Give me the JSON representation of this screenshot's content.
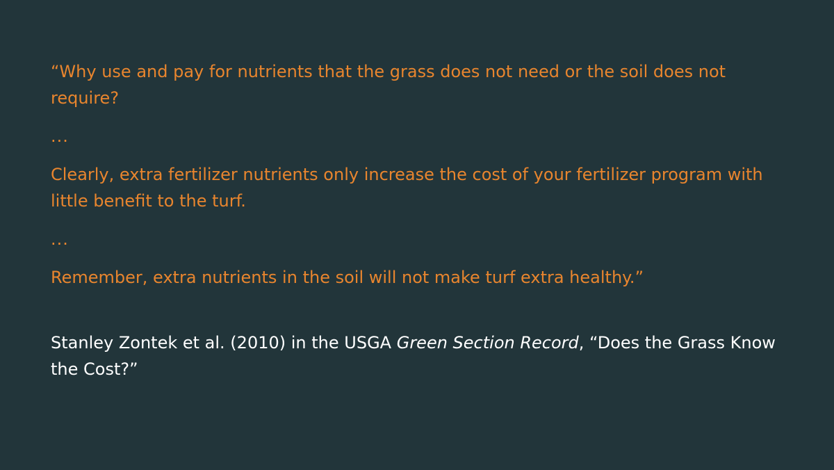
{
  "quote": {
    "line1": "“Why use and pay for nutrients that the grass does not need or the soil does not require?",
    "ellipsis1": "...",
    "line2": "Clearly, extra fertilizer nutrients only increase the cost of your fertilizer program with little benefit to the turf.",
    "ellipsis2": "...",
    "line3": "Remember, extra nutrients in the soil will not make turf extra healthy.”"
  },
  "citation": {
    "prefix": "Stanley Zontek et al. (2010) in the USGA ",
    "publication": "Green Section Record",
    "suffix": ", “Does the Grass Know the Cost?”"
  },
  "colors": {
    "background": "#22353a",
    "quote_text": "#e8852e",
    "citation_text": "#ffffff"
  }
}
